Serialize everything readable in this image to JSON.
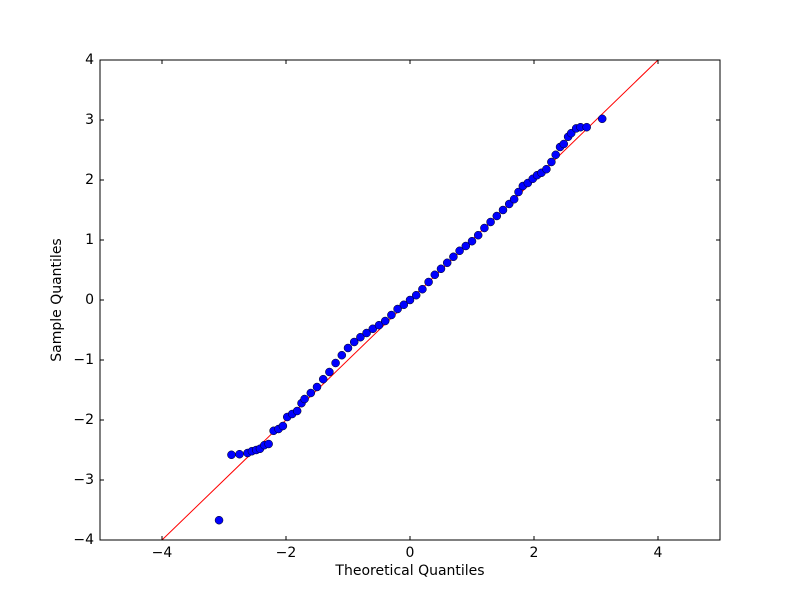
{
  "chart_data": {
    "type": "scatter",
    "xlabel": "Theoretical Quantiles",
    "ylabel": "Sample Quantiles",
    "xlim": [
      -5,
      5
    ],
    "ylim": [
      -4,
      4
    ],
    "xticks": [
      {
        "value": -4,
        "label": "−4"
      },
      {
        "value": -2,
        "label": "−2"
      },
      0,
      2,
      4
    ],
    "yticks": [
      {
        "value": -4,
        "label": "−4"
      },
      {
        "value": -3,
        "label": "−3"
      },
      {
        "value": -2,
        "label": "−2"
      },
      {
        "value": -1,
        "label": "−1"
      },
      0,
      1,
      2,
      3,
      4
    ],
    "color": "#0000ff",
    "x": [
      -3.08,
      -2.88,
      -2.75,
      -2.62,
      -2.55,
      -2.48,
      -2.42,
      -2.35,
      -2.28,
      -2.2,
      -2.12,
      -2.05,
      -1.98,
      -1.9,
      -1.82,
      -1.75,
      -1.7,
      -1.6,
      -1.5,
      -1.4,
      -1.3,
      -1.2,
      -1.1,
      -1.0,
      -0.9,
      -0.8,
      -0.7,
      -0.6,
      -0.5,
      -0.4,
      -0.3,
      -0.2,
      -0.1,
      0,
      0.1,
      0.2,
      0.3,
      0.4,
      0.5,
      0.6,
      0.7,
      0.8,
      0.9,
      1.0,
      1.1,
      1.2,
      1.3,
      1.4,
      1.5,
      1.6,
      1.68,
      1.75,
      1.82,
      1.9,
      1.98,
      2.05,
      2.12,
      2.2,
      2.28,
      2.35,
      2.42,
      2.48,
      2.55,
      2.6,
      2.68,
      2.75,
      2.85,
      3.1
    ],
    "values": [
      -3.67,
      -2.58,
      -2.57,
      -2.55,
      -2.52,
      -2.5,
      -2.48,
      -2.42,
      -2.4,
      -2.18,
      -2.15,
      -2.1,
      -1.95,
      -1.9,
      -1.85,
      -1.72,
      -1.65,
      -1.55,
      -1.45,
      -1.32,
      -1.2,
      -1.05,
      -0.92,
      -0.8,
      -0.7,
      -0.62,
      -0.55,
      -0.48,
      -0.42,
      -0.35,
      -0.25,
      -0.15,
      -0.08,
      0,
      0.08,
      0.18,
      0.3,
      0.42,
      0.52,
      0.62,
      0.72,
      0.82,
      0.9,
      0.98,
      1.08,
      1.2,
      1.3,
      1.4,
      1.5,
      1.6,
      1.68,
      1.8,
      1.9,
      1.95,
      2.02,
      2.08,
      2.12,
      2.18,
      2.3,
      2.42,
      2.55,
      2.6,
      2.72,
      2.78,
      2.86,
      2.88,
      2.88,
      3.02
    ],
    "reference_line": {
      "x": [
        -4,
        4
      ],
      "y": [
        -4,
        4
      ],
      "color": "#ff0000"
    }
  }
}
